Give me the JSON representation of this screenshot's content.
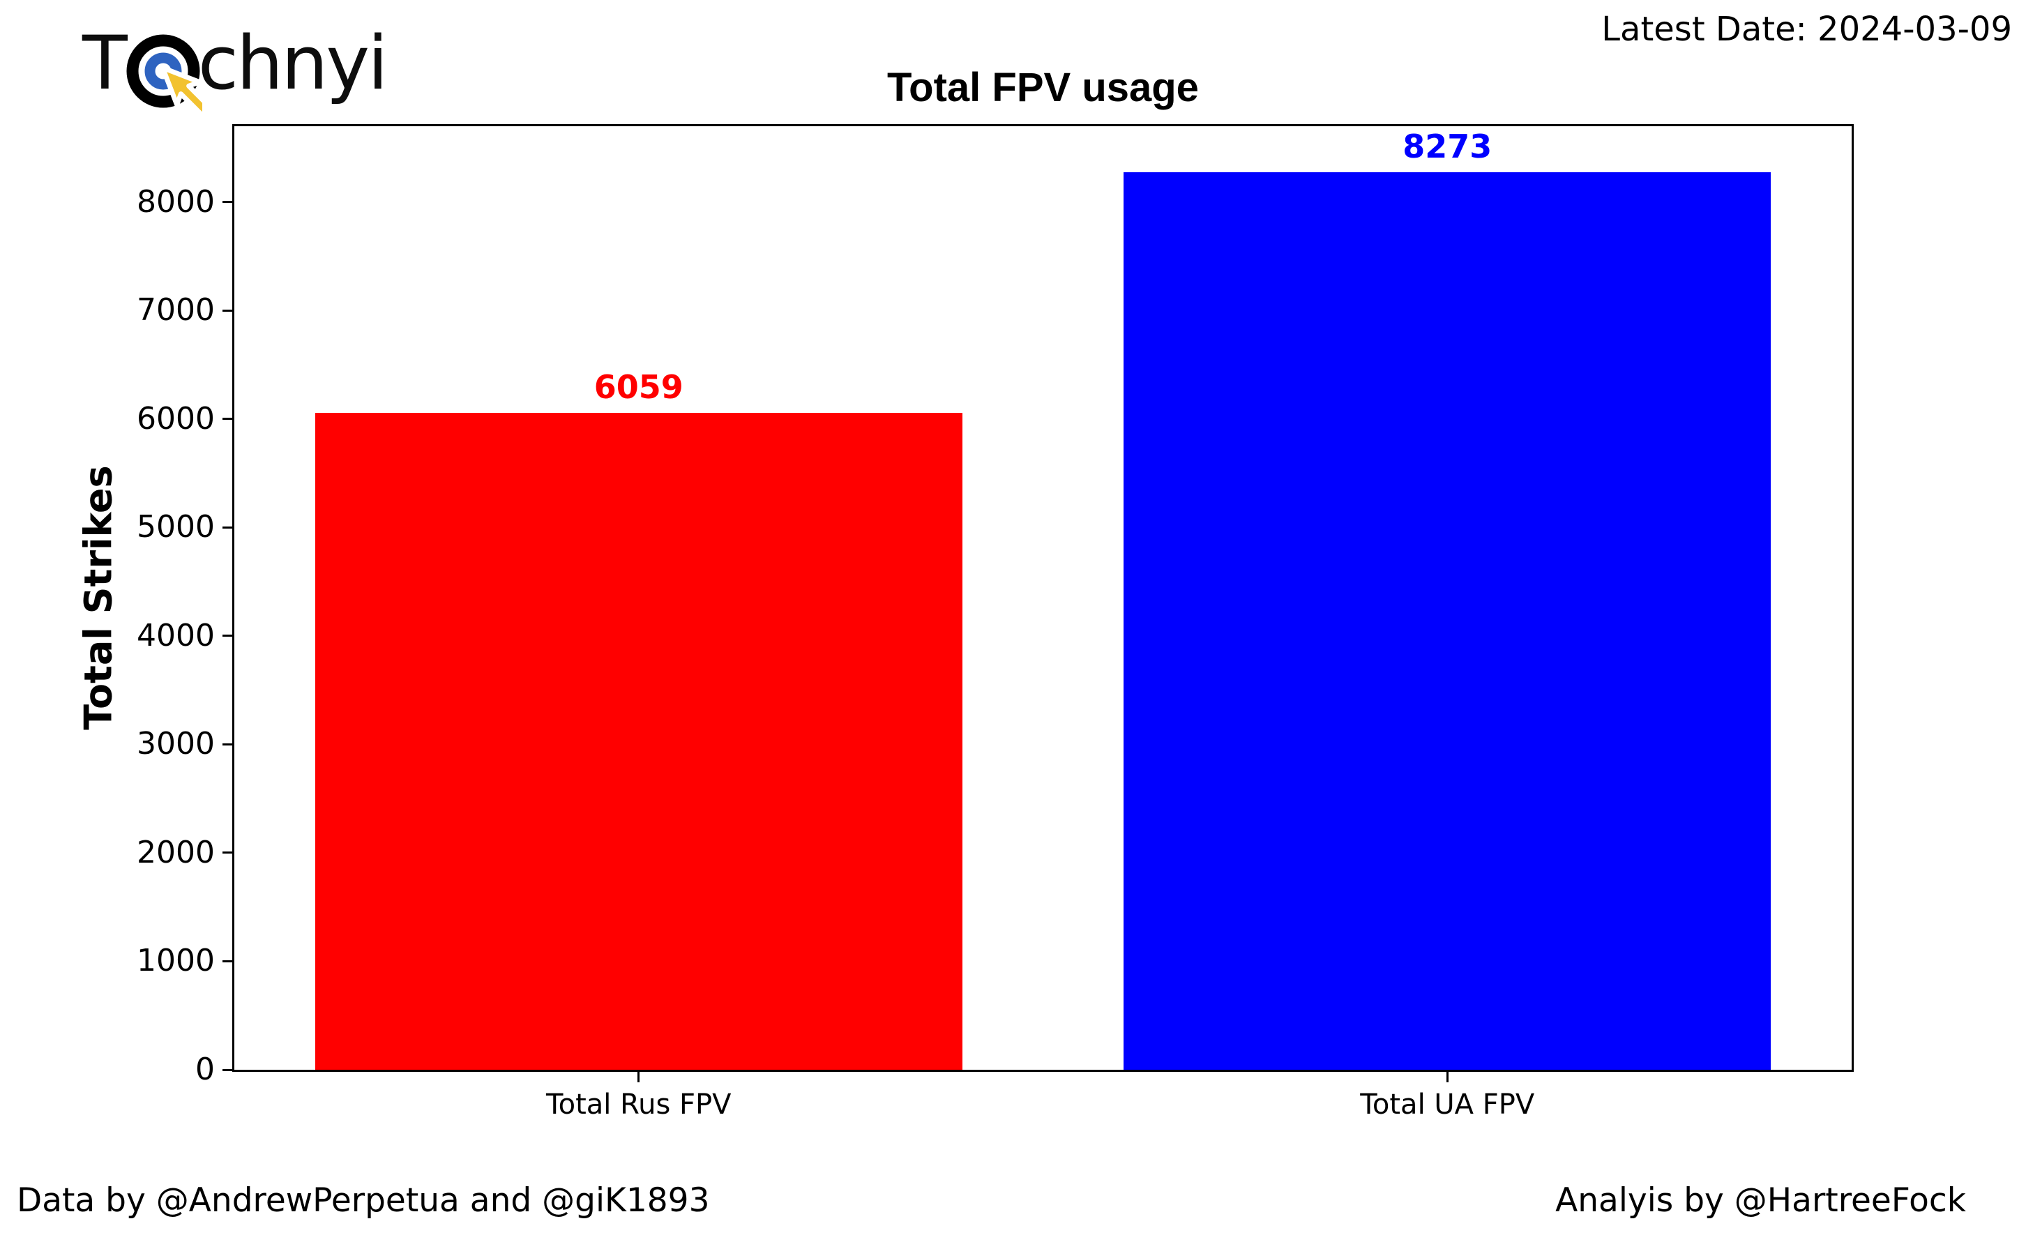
{
  "logo": {
    "prefix": "T",
    "suffix": "chnyi",
    "icon": "cursor-target-icon",
    "colors": {
      "outer_ring": "#000000",
      "inner_ring": "#2e63c0",
      "cursor": "#f2c230"
    }
  },
  "header": {
    "latest_date": "Latest Date: 2024-03-09"
  },
  "chart_data": {
    "type": "bar",
    "title": "Total FPV usage",
    "xlabel": "",
    "ylabel": "Total Strikes",
    "categories": [
      "Total Rus FPV",
      "Total UA FPV"
    ],
    "values": [
      6059,
      8273
    ],
    "bar_colors": [
      "#ff0000",
      "#0000ff"
    ],
    "value_label_colors": [
      "#ff0000",
      "#0000ff"
    ],
    "yticks": [
      0,
      1000,
      2000,
      3000,
      4000,
      5000,
      6000,
      7000,
      8000
    ],
    "ylim": [
      0,
      8698
    ],
    "bar_width_fraction": 0.8,
    "grid": false,
    "legend": "none"
  },
  "footer": {
    "left": "Data by @AndrewPerpetua and @giK1893",
    "right": "Analyis by @HartreeFock"
  }
}
